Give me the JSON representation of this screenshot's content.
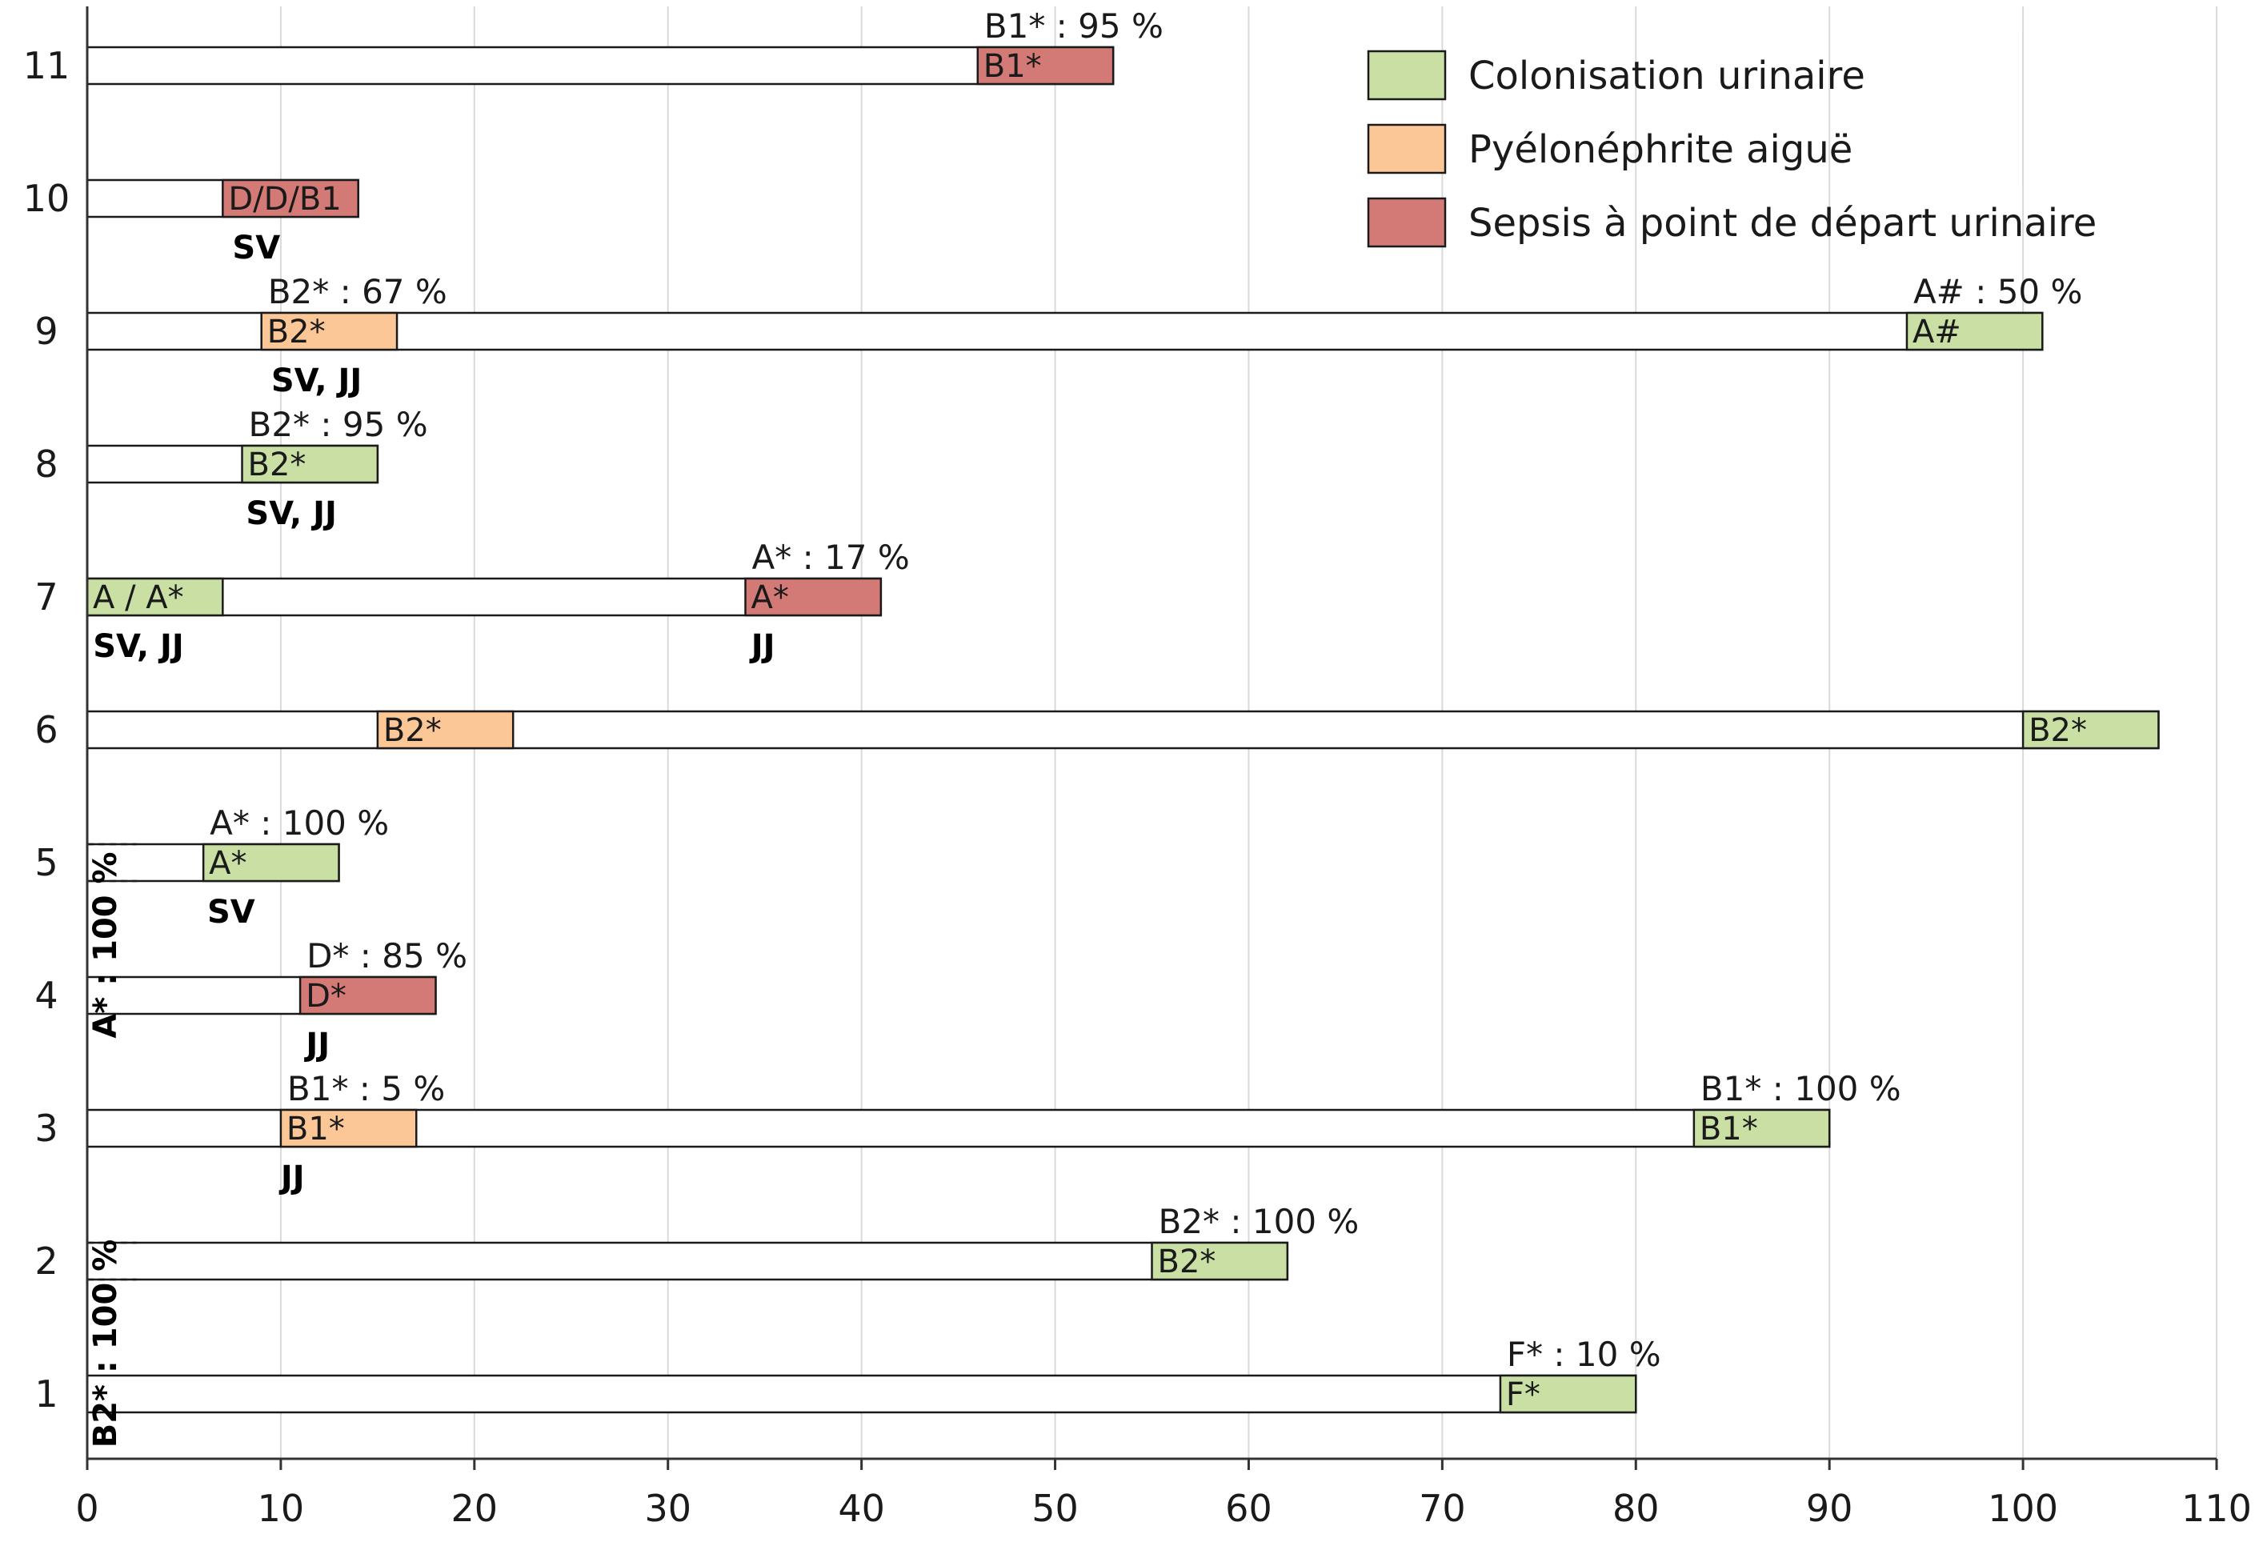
{
  "chart_data": {
    "type": "bar",
    "orientation": "horizontal",
    "x_ticks": [
      0,
      10,
      20,
      30,
      40,
      50,
      60,
      70,
      80,
      90,
      100,
      110
    ],
    "xlim": [
      0,
      110
    ],
    "y_ticks": [
      1,
      2,
      3,
      4,
      5,
      6,
      7,
      8,
      9,
      10,
      11
    ],
    "grid": "vertical",
    "legend": {
      "position": "top-right",
      "entries": [
        {
          "key": "colonisation",
          "label": "Colonisation urinaire",
          "color": "#c9dfa4"
        },
        {
          "key": "pyelo",
          "label": "Pyélonéphrite aiguë",
          "color": "#fbc797"
        },
        {
          "key": "sepsis",
          "label": "Sepsis à point de départ urinaire",
          "color": "#d47a76"
        }
      ]
    },
    "patients": [
      {
        "id": 11,
        "length": 53,
        "segments": [
          {
            "start": 46,
            "end": 53,
            "type": "sepsis",
            "label": "B1*",
            "annotation": "B1* : 95 %"
          }
        ],
        "subs": []
      },
      {
        "id": 10,
        "length": 14,
        "segments": [
          {
            "start": 7,
            "end": 14,
            "type": "sepsis",
            "label": "D/D/B1",
            "annotation": ""
          }
        ],
        "subs": [
          {
            "x": 7.5,
            "text": "SV"
          }
        ]
      },
      {
        "id": 9,
        "length": 101,
        "segments": [
          {
            "start": 9,
            "end": 16,
            "type": "pyelo",
            "label": "B2*",
            "annotation": "B2* : 67 %"
          },
          {
            "start": 94,
            "end": 101,
            "type": "colonisation",
            "label": "A#",
            "annotation": "A# : 50 %"
          }
        ],
        "subs": [
          {
            "x": 9.5,
            "text": "SV, JJ"
          }
        ]
      },
      {
        "id": 8,
        "length": 15,
        "segments": [
          {
            "start": 8,
            "end": 15,
            "type": "colonisation",
            "label": "B2*",
            "annotation": "B2* : 95 %"
          }
        ],
        "subs": [
          {
            "x": 8.2,
            "text": "SV, JJ"
          }
        ]
      },
      {
        "id": 7,
        "length": 41,
        "segments": [
          {
            "start": 0,
            "end": 7,
            "type": "colonisation",
            "label": "A / A*",
            "annotation": ""
          },
          {
            "start": 34,
            "end": 41,
            "type": "sepsis",
            "label": "A*",
            "annotation": "A* : 17 %"
          }
        ],
        "subs": [
          {
            "x": 0.3,
            "text": "SV, JJ"
          },
          {
            "x": 34.3,
            "text": "JJ"
          }
        ]
      },
      {
        "id": 6,
        "length": 107,
        "segments": [
          {
            "start": 15,
            "end": 22,
            "type": "pyelo",
            "label": "B2*",
            "annotation": ""
          },
          {
            "start": 100,
            "end": 107,
            "type": "colonisation",
            "label": "B2*",
            "annotation": ""
          }
        ],
        "subs": []
      },
      {
        "id": 5,
        "length": 13,
        "segments": [
          {
            "start": 6,
            "end": 13,
            "type": "colonisation",
            "label": "A*",
            "annotation": "A* : 100 %"
          }
        ],
        "subs": [
          {
            "x": 6.2,
            "text": "SV"
          }
        ]
      },
      {
        "id": 4,
        "length": 18,
        "segments": [
          {
            "start": 11,
            "end": 18,
            "type": "sepsis",
            "label": "D*",
            "annotation": "D* : 85 %"
          }
        ],
        "subs": [
          {
            "x": 11.3,
            "text": "JJ"
          }
        ]
      },
      {
        "id": 3,
        "length": 90,
        "segments": [
          {
            "start": 10,
            "end": 17,
            "type": "pyelo",
            "label": "B1*",
            "annotation": "B1* : 5 %"
          },
          {
            "start": 83,
            "end": 90,
            "type": "colonisation",
            "label": "B1*",
            "annotation": "B1* : 100 %"
          }
        ],
        "subs": [
          {
            "x": 10,
            "text": "JJ"
          }
        ]
      },
      {
        "id": 2,
        "length": 62,
        "segments": [
          {
            "start": 55,
            "end": 62,
            "type": "colonisation",
            "label": "B2*",
            "annotation": "B2* : 100 %"
          }
        ],
        "subs": []
      },
      {
        "id": 1,
        "length": 80,
        "segments": [
          {
            "start": 73,
            "end": 80,
            "type": "colonisation",
            "label": "F*",
            "annotation": "F* : 10 %"
          }
        ],
        "subs": []
      }
    ],
    "brackets": [
      {
        "from_patient": 4,
        "to_patient": 5,
        "text": "A* : 100 %"
      },
      {
        "from_patient": 1,
        "to_patient": 2,
        "text": "B2* : 100 %"
      }
    ]
  }
}
